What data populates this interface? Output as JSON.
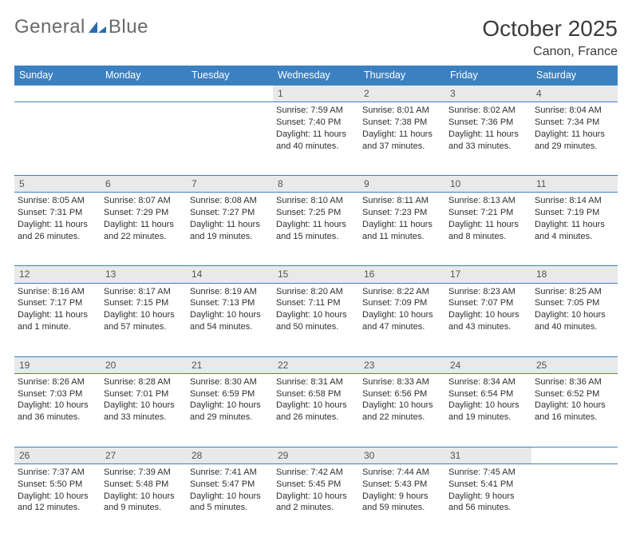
{
  "logo": {
    "word1": "General",
    "word2": "Blue"
  },
  "title": {
    "month": "October 2025",
    "location": "Canon, France"
  },
  "weekdays": [
    "Sunday",
    "Monday",
    "Tuesday",
    "Wednesday",
    "Thursday",
    "Friday",
    "Saturday"
  ],
  "colors": {
    "header_bg": "#3b81c2",
    "header_fg": "#ffffff",
    "daynum_bg": "#e9e9e9",
    "daynum_fg": "#555555",
    "border": "#3b81c2",
    "title_fg": "#3b3b3b",
    "body_fg": "#2f2f2f",
    "logo_fg": "#6a6a6a"
  },
  "weeks": [
    [
      {
        "n": "",
        "lines": []
      },
      {
        "n": "",
        "lines": []
      },
      {
        "n": "",
        "lines": []
      },
      {
        "n": "1",
        "lines": [
          "Sunrise: 7:59 AM",
          "Sunset: 7:40 PM",
          "Daylight: 11 hours",
          "and 40 minutes."
        ]
      },
      {
        "n": "2",
        "lines": [
          "Sunrise: 8:01 AM",
          "Sunset: 7:38 PM",
          "Daylight: 11 hours",
          "and 37 minutes."
        ]
      },
      {
        "n": "3",
        "lines": [
          "Sunrise: 8:02 AM",
          "Sunset: 7:36 PM",
          "Daylight: 11 hours",
          "and 33 minutes."
        ]
      },
      {
        "n": "4",
        "lines": [
          "Sunrise: 8:04 AM",
          "Sunset: 7:34 PM",
          "Daylight: 11 hours",
          "and 29 minutes."
        ]
      }
    ],
    [
      {
        "n": "5",
        "lines": [
          "Sunrise: 8:05 AM",
          "Sunset: 7:31 PM",
          "Daylight: 11 hours",
          "and 26 minutes."
        ]
      },
      {
        "n": "6",
        "lines": [
          "Sunrise: 8:07 AM",
          "Sunset: 7:29 PM",
          "Daylight: 11 hours",
          "and 22 minutes."
        ]
      },
      {
        "n": "7",
        "lines": [
          "Sunrise: 8:08 AM",
          "Sunset: 7:27 PM",
          "Daylight: 11 hours",
          "and 19 minutes."
        ]
      },
      {
        "n": "8",
        "lines": [
          "Sunrise: 8:10 AM",
          "Sunset: 7:25 PM",
          "Daylight: 11 hours",
          "and 15 minutes."
        ]
      },
      {
        "n": "9",
        "lines": [
          "Sunrise: 8:11 AM",
          "Sunset: 7:23 PM",
          "Daylight: 11 hours",
          "and 11 minutes."
        ]
      },
      {
        "n": "10",
        "lines": [
          "Sunrise: 8:13 AM",
          "Sunset: 7:21 PM",
          "Daylight: 11 hours",
          "and 8 minutes."
        ]
      },
      {
        "n": "11",
        "lines": [
          "Sunrise: 8:14 AM",
          "Sunset: 7:19 PM",
          "Daylight: 11 hours",
          "and 4 minutes."
        ]
      }
    ],
    [
      {
        "n": "12",
        "lines": [
          "Sunrise: 8:16 AM",
          "Sunset: 7:17 PM",
          "Daylight: 11 hours",
          "and 1 minute."
        ]
      },
      {
        "n": "13",
        "lines": [
          "Sunrise: 8:17 AM",
          "Sunset: 7:15 PM",
          "Daylight: 10 hours",
          "and 57 minutes."
        ]
      },
      {
        "n": "14",
        "lines": [
          "Sunrise: 8:19 AM",
          "Sunset: 7:13 PM",
          "Daylight: 10 hours",
          "and 54 minutes."
        ]
      },
      {
        "n": "15",
        "lines": [
          "Sunrise: 8:20 AM",
          "Sunset: 7:11 PM",
          "Daylight: 10 hours",
          "and 50 minutes."
        ]
      },
      {
        "n": "16",
        "lines": [
          "Sunrise: 8:22 AM",
          "Sunset: 7:09 PM",
          "Daylight: 10 hours",
          "and 47 minutes."
        ]
      },
      {
        "n": "17",
        "lines": [
          "Sunrise: 8:23 AM",
          "Sunset: 7:07 PM",
          "Daylight: 10 hours",
          "and 43 minutes."
        ]
      },
      {
        "n": "18",
        "lines": [
          "Sunrise: 8:25 AM",
          "Sunset: 7:05 PM",
          "Daylight: 10 hours",
          "and 40 minutes."
        ]
      }
    ],
    [
      {
        "n": "19",
        "lines": [
          "Sunrise: 8:26 AM",
          "Sunset: 7:03 PM",
          "Daylight: 10 hours",
          "and 36 minutes."
        ]
      },
      {
        "n": "20",
        "lines": [
          "Sunrise: 8:28 AM",
          "Sunset: 7:01 PM",
          "Daylight: 10 hours",
          "and 33 minutes."
        ]
      },
      {
        "n": "21",
        "lines": [
          "Sunrise: 8:30 AM",
          "Sunset: 6:59 PM",
          "Daylight: 10 hours",
          "and 29 minutes."
        ]
      },
      {
        "n": "22",
        "lines": [
          "Sunrise: 8:31 AM",
          "Sunset: 6:58 PM",
          "Daylight: 10 hours",
          "and 26 minutes."
        ]
      },
      {
        "n": "23",
        "lines": [
          "Sunrise: 8:33 AM",
          "Sunset: 6:56 PM",
          "Daylight: 10 hours",
          "and 22 minutes."
        ]
      },
      {
        "n": "24",
        "lines": [
          "Sunrise: 8:34 AM",
          "Sunset: 6:54 PM",
          "Daylight: 10 hours",
          "and 19 minutes."
        ]
      },
      {
        "n": "25",
        "lines": [
          "Sunrise: 8:36 AM",
          "Sunset: 6:52 PM",
          "Daylight: 10 hours",
          "and 16 minutes."
        ]
      }
    ],
    [
      {
        "n": "26",
        "lines": [
          "Sunrise: 7:37 AM",
          "Sunset: 5:50 PM",
          "Daylight: 10 hours",
          "and 12 minutes."
        ]
      },
      {
        "n": "27",
        "lines": [
          "Sunrise: 7:39 AM",
          "Sunset: 5:48 PM",
          "Daylight: 10 hours",
          "and 9 minutes."
        ]
      },
      {
        "n": "28",
        "lines": [
          "Sunrise: 7:41 AM",
          "Sunset: 5:47 PM",
          "Daylight: 10 hours",
          "and 5 minutes."
        ]
      },
      {
        "n": "29",
        "lines": [
          "Sunrise: 7:42 AM",
          "Sunset: 5:45 PM",
          "Daylight: 10 hours",
          "and 2 minutes."
        ]
      },
      {
        "n": "30",
        "lines": [
          "Sunrise: 7:44 AM",
          "Sunset: 5:43 PM",
          "Daylight: 9 hours",
          "and 59 minutes."
        ]
      },
      {
        "n": "31",
        "lines": [
          "Sunrise: 7:45 AM",
          "Sunset: 5:41 PM",
          "Daylight: 9 hours",
          "and 56 minutes."
        ]
      },
      {
        "n": "",
        "lines": []
      }
    ]
  ]
}
